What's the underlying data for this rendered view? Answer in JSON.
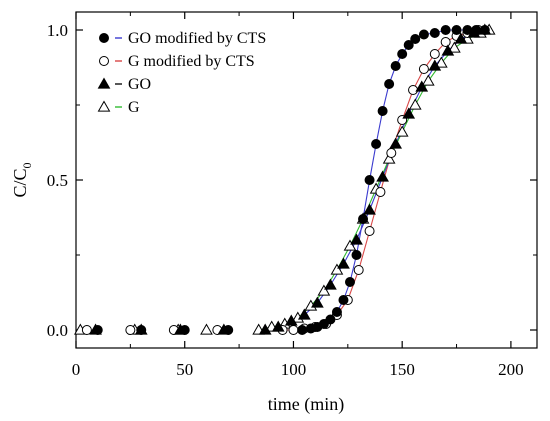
{
  "chart_data": {
    "type": "scatter",
    "xlabel": "time (min)",
    "ylabel": "C/C",
    "ylabel_sub": "0",
    "xlim": [
      0,
      212
    ],
    "ylim": [
      -0.06,
      1.06
    ],
    "x_ticks": [
      "0",
      "50",
      "100",
      "150",
      "200"
    ],
    "y_ticks": [
      "0.0",
      "0.5",
      "1.0"
    ],
    "grid": false,
    "legend_position": "top-left",
    "series": [
      {
        "name": "GO modified by CTS",
        "marker": "filled-circle",
        "line_color": "#3b3bcf",
        "x": [
          10,
          30,
          50,
          70,
          104,
          108,
          111,
          114,
          117,
          120,
          123,
          126,
          129,
          132,
          135,
          138,
          141,
          144,
          147,
          150,
          153,
          156,
          160,
          165,
          170,
          175,
          180,
          184,
          188
        ],
        "y": [
          0,
          0,
          0,
          0,
          0,
          0.005,
          0.01,
          0.02,
          0.035,
          0.06,
          0.1,
          0.16,
          0.25,
          0.37,
          0.5,
          0.62,
          0.73,
          0.82,
          0.88,
          0.92,
          0.95,
          0.97,
          0.985,
          0.99,
          1.0,
          1.0,
          1.0,
          1.0,
          1.0
        ]
      },
      {
        "name": "G modified by CTS",
        "marker": "open-circle",
        "line_color": "#d94848",
        "x": [
          5,
          25,
          45,
          65,
          95,
          100,
          105,
          110,
          115,
          120,
          125,
          130,
          135,
          140,
          145,
          150,
          155,
          160,
          165,
          170,
          175,
          180,
          185
        ],
        "y": [
          0,
          0,
          0,
          0,
          0,
          0,
          0.005,
          0.01,
          0.02,
          0.05,
          0.1,
          0.2,
          0.33,
          0.46,
          0.59,
          0.7,
          0.8,
          0.87,
          0.92,
          0.96,
          0.98,
          0.99,
          1.0
        ]
      },
      {
        "name": "GO",
        "marker": "filled-triangle",
        "line_color": "#3b3bcf",
        "x": [
          9,
          30,
          48,
          68,
          87,
          93,
          99,
          105,
          111,
          117,
          123,
          129,
          135,
          141,
          147,
          153,
          159,
          165,
          171,
          177,
          183,
          188
        ],
        "y": [
          0,
          0,
          0,
          0,
          0,
          0.01,
          0.03,
          0.05,
          0.09,
          0.15,
          0.22,
          0.3,
          0.4,
          0.51,
          0.62,
          0.72,
          0.81,
          0.88,
          0.93,
          0.97,
          0.99,
          1.0
        ]
      },
      {
        "name": "G",
        "marker": "open-triangle",
        "line_color": "#33bb33",
        "x": [
          2,
          27,
          47,
          60,
          84,
          90,
          96,
          102,
          108,
          114,
          120,
          126,
          132,
          138,
          144,
          150,
          156,
          162,
          168,
          174,
          180,
          186,
          190
        ],
        "y": [
          0,
          0,
          0,
          0,
          0,
          0.01,
          0.02,
          0.04,
          0.08,
          0.13,
          0.2,
          0.28,
          0.37,
          0.47,
          0.57,
          0.66,
          0.75,
          0.83,
          0.89,
          0.94,
          0.97,
          0.99,
          1.0
        ]
      }
    ],
    "legend": [
      {
        "label": "GO modified by CTS",
        "marker": "filled-circle",
        "dash_color": "#3b3bcf"
      },
      {
        "label": "G modified by CTS",
        "marker": "open-circle",
        "dash_color": "#d94848"
      },
      {
        "label": "GO",
        "marker": "filled-triangle",
        "dash_color": "#111111"
      },
      {
        "label": "G",
        "marker": "open-triangle",
        "dash_color": "#33bb33"
      }
    ]
  }
}
